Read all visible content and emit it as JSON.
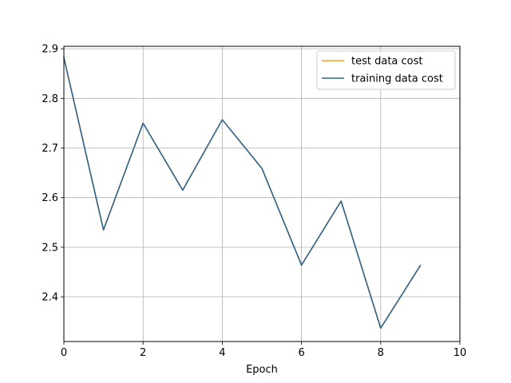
{
  "chart_data": {
    "type": "line",
    "title": "",
    "xlabel": "Epoch",
    "ylabel": "",
    "xlim": [
      0,
      10
    ],
    "ylim": [
      2.31,
      2.905
    ],
    "xticks": [
      0,
      2,
      4,
      6,
      8,
      10
    ],
    "yticks": [
      2.4,
      2.5,
      2.6,
      2.7,
      2.8,
      2.9
    ],
    "grid": true,
    "legend_position": "top-right",
    "series": [
      {
        "name": "test data cost",
        "color": "#ff9f1c",
        "x": [
          0,
          1,
          2,
          3,
          4,
          5,
          6,
          7,
          8,
          9
        ],
        "y": [
          2.882,
          2.535,
          2.75,
          2.615,
          2.757,
          2.659,
          2.464,
          2.593,
          2.337,
          2.463
        ]
      },
      {
        "name": "training data cost",
        "color": "#2e6591",
        "x": [
          0,
          1,
          2,
          3,
          4,
          5,
          6,
          7,
          8,
          9
        ],
        "y": [
          2.882,
          2.535,
          2.75,
          2.615,
          2.757,
          2.659,
          2.464,
          2.593,
          2.337,
          2.463
        ]
      }
    ]
  }
}
